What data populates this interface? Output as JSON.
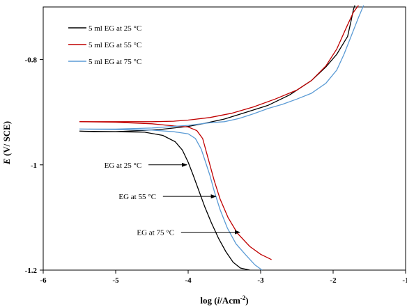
{
  "chart_data": {
    "type": "line",
    "xlabel": "log (i/Acm⁻²)",
    "xlabel_parts": [
      "log (",
      "i",
      "/Acm",
      "-2",
      ")"
    ],
    "ylabel": "E (V/ SCE)",
    "ylabel_parts": [
      "E",
      " (V/ SCE)"
    ],
    "xlim": [
      -6,
      -1
    ],
    "ylim": [
      -1.2,
      -0.7
    ],
    "x_ticks": [
      -6,
      -5,
      -4,
      -3,
      -2,
      -1
    ],
    "x_tick_labels": [
      "-6",
      "-5",
      "-4",
      "-3",
      "-2",
      "-1"
    ],
    "y_ticks": [
      -1.2,
      -1,
      -0.8
    ],
    "y_tick_labels": [
      "-1.2",
      "-1",
      "-0.8"
    ],
    "grid": false,
    "legend": "top-left",
    "series": [
      {
        "name": "5 ml EG at 25 °C",
        "color": "#000000",
        "points": [
          [
            -5.5,
            -0.936
          ],
          [
            -5.3,
            -0.937
          ],
          [
            -5.0,
            -0.937
          ],
          [
            -4.7,
            -0.935
          ],
          [
            -4.4,
            -0.933
          ],
          [
            -4.2,
            -0.93
          ],
          [
            -4.0,
            -0.927
          ],
          [
            -3.8,
            -0.922
          ],
          [
            -3.5,
            -0.913
          ],
          [
            -3.2,
            -0.9
          ],
          [
            -2.9,
            -0.887
          ],
          [
            -2.6,
            -0.867
          ],
          [
            -2.3,
            -0.84
          ],
          [
            -2.1,
            -0.814
          ],
          [
            -1.95,
            -0.79
          ],
          [
            -1.8,
            -0.756
          ],
          [
            -1.75,
            -0.725
          ],
          [
            -1.72,
            -0.705
          ],
          [
            -1.7,
            -0.697
          ]
        ],
        "cathodic": [
          [
            -5.5,
            -0.936
          ],
          [
            -5.0,
            -0.937
          ],
          [
            -4.6,
            -0.938
          ],
          [
            -4.35,
            -0.944
          ],
          [
            -4.18,
            -0.956
          ],
          [
            -4.08,
            -0.972
          ],
          [
            -4.0,
            -0.995
          ],
          [
            -3.93,
            -1.02
          ],
          [
            -3.85,
            -1.05
          ],
          [
            -3.77,
            -1.08
          ],
          [
            -3.68,
            -1.11
          ],
          [
            -3.58,
            -1.14
          ],
          [
            -3.48,
            -1.165
          ],
          [
            -3.38,
            -1.185
          ],
          [
            -3.28,
            -1.196
          ],
          [
            -3.15,
            -1.2
          ]
        ]
      },
      {
        "name": "5 ml EG at 55 °C",
        "color": "#c00000",
        "points": [
          [
            -5.5,
            -0.918
          ],
          [
            -5.0,
            -0.918
          ],
          [
            -4.5,
            -0.918
          ],
          [
            -4.2,
            -0.917
          ],
          [
            -4.0,
            -0.915
          ],
          [
            -3.7,
            -0.91
          ],
          [
            -3.4,
            -0.902
          ],
          [
            -3.1,
            -0.89
          ],
          [
            -2.8,
            -0.875
          ],
          [
            -2.5,
            -0.858
          ],
          [
            -2.3,
            -0.84
          ],
          [
            -2.1,
            -0.812
          ],
          [
            -1.95,
            -0.78
          ],
          [
            -1.82,
            -0.74
          ],
          [
            -1.72,
            -0.71
          ],
          [
            -1.65,
            -0.697
          ]
        ],
        "cathodic": [
          [
            -5.5,
            -0.918
          ],
          [
            -5.0,
            -0.919
          ],
          [
            -4.5,
            -0.922
          ],
          [
            -4.2,
            -0.926
          ],
          [
            -4.0,
            -0.928
          ],
          [
            -3.88,
            -0.935
          ],
          [
            -3.8,
            -0.95
          ],
          [
            -3.75,
            -0.975
          ],
          [
            -3.7,
            -1.0
          ],
          [
            -3.64,
            -1.03
          ],
          [
            -3.56,
            -1.065
          ],
          [
            -3.45,
            -1.1
          ],
          [
            -3.32,
            -1.13
          ],
          [
            -3.15,
            -1.155
          ],
          [
            -3.0,
            -1.17
          ],
          [
            -2.85,
            -1.18
          ]
        ]
      },
      {
        "name": "5 ml EG at 75 °C",
        "color": "#5b9bd5",
        "points": [
          [
            -5.5,
            -0.932
          ],
          [
            -5.0,
            -0.932
          ],
          [
            -4.5,
            -0.93
          ],
          [
            -4.0,
            -0.925
          ],
          [
            -3.7,
            -0.92
          ],
          [
            -3.5,
            -0.918
          ],
          [
            -3.3,
            -0.912
          ],
          [
            -3.1,
            -0.903
          ],
          [
            -2.9,
            -0.893
          ],
          [
            -2.7,
            -0.885
          ],
          [
            -2.5,
            -0.875
          ],
          [
            -2.3,
            -0.864
          ],
          [
            -2.1,
            -0.845
          ],
          [
            -1.95,
            -0.82
          ],
          [
            -1.85,
            -0.79
          ],
          [
            -1.75,
            -0.755
          ],
          [
            -1.65,
            -0.72
          ],
          [
            -1.58,
            -0.697
          ]
        ],
        "cathodic": [
          [
            -5.5,
            -0.932
          ],
          [
            -5.0,
            -0.933
          ],
          [
            -4.5,
            -0.934
          ],
          [
            -4.2,
            -0.937
          ],
          [
            -4.0,
            -0.941
          ],
          [
            -3.9,
            -0.95
          ],
          [
            -3.82,
            -0.97
          ],
          [
            -3.76,
            -0.995
          ],
          [
            -3.7,
            -1.02
          ],
          [
            -3.64,
            -1.05
          ],
          [
            -3.56,
            -1.085
          ],
          [
            -3.46,
            -1.12
          ],
          [
            -3.34,
            -1.15
          ],
          [
            -3.2,
            -1.172
          ],
          [
            -3.08,
            -1.19
          ],
          [
            -2.98,
            -1.2
          ]
        ]
      }
    ],
    "annotations": [
      {
        "text": "EG at 25 °C",
        "label_at": [
          -4.9,
          -1.0
        ],
        "arrow_to": [
          -4.0,
          -1.0
        ]
      },
      {
        "text": "EG at 55 °C",
        "label_at": [
          -4.7,
          -1.06
        ],
        "arrow_to": [
          -3.6,
          -1.06
        ]
      },
      {
        "text": "EG at 75 °C",
        "label_at": [
          -4.45,
          -1.128
        ],
        "arrow_to": [
          -3.27,
          -1.128
        ]
      }
    ]
  }
}
